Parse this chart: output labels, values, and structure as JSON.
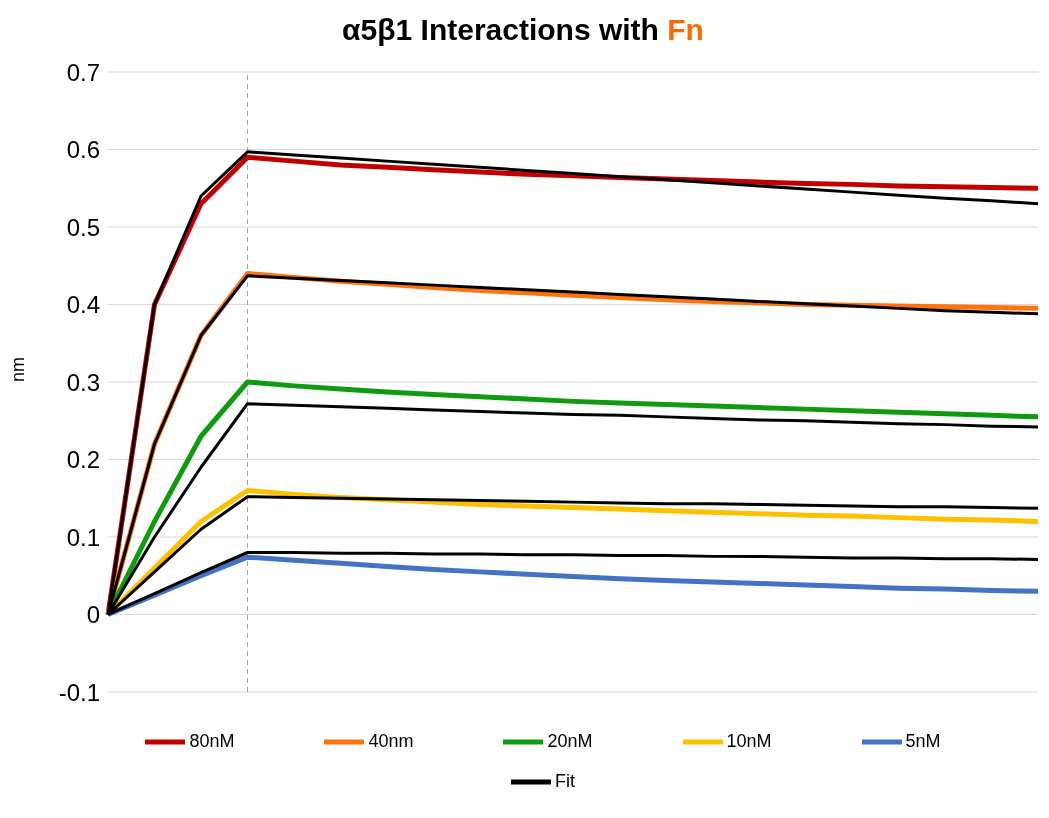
{
  "chart_data": {
    "type": "line",
    "title": "α5β1 Interactions with Fn",
    "ylabel": "nm",
    "categories": [
      null,
      null,
      null,
      null,
      null,
      null,
      null,
      null,
      null,
      null,
      null,
      null,
      null,
      null,
      null,
      null,
      null,
      null,
      null,
      null,
      null
    ],
    "ylim": [
      -0.1,
      0.7
    ],
    "yticks": [
      -0.1,
      0,
      0.1,
      0.2,
      0.3,
      0.4,
      0.5,
      0.6,
      0.7
    ],
    "grid": "y",
    "legend": "bottom",
    "tick_labels": "y",
    "marker": "none",
    "line_style": "solid",
    "series": [
      {
        "name": "80nM",
        "color": "#c00000",
        "values": [
          0,
          0.4,
          0.53,
          0.59,
          0.585,
          0.58,
          0.577,
          0.574,
          0.571,
          0.568,
          0.566,
          0.564,
          0.562,
          0.56,
          0.558,
          0.556,
          0.555,
          0.553,
          0.552,
          0.551,
          0.55
        ]
      },
      {
        "name": "40nm",
        "color": "#ff7410",
        "values": [
          0,
          0.22,
          0.36,
          0.44,
          0.435,
          0.43,
          0.426,
          0.422,
          0.418,
          0.415,
          0.412,
          0.409,
          0.406,
          0.404,
          0.402,
          0.4,
          0.399,
          0.398,
          0.397,
          0.396,
          0.395
        ]
      },
      {
        "name": "20nM",
        "color": "#109a10",
        "values": [
          0,
          0.12,
          0.23,
          0.3,
          0.295,
          0.291,
          0.287,
          0.284,
          0.281,
          0.278,
          0.275,
          0.273,
          0.271,
          0.269,
          0.267,
          0.265,
          0.263,
          0.261,
          0.259,
          0.257,
          0.255
        ]
      },
      {
        "name": "10nM",
        "color": "#ffc000",
        "values": [
          0,
          0.06,
          0.12,
          0.16,
          0.155,
          0.151,
          0.148,
          0.145,
          0.142,
          0.14,
          0.138,
          0.136,
          0.134,
          0.132,
          0.13,
          0.128,
          0.127,
          0.125,
          0.123,
          0.122,
          0.12
        ]
      },
      {
        "name": "5nM",
        "color": "#4472c4",
        "values": [
          0,
          0.025,
          0.05,
          0.074,
          0.07,
          0.066,
          0.062,
          0.058,
          0.055,
          0.052,
          0.049,
          0.046,
          0.044,
          0.042,
          0.04,
          0.038,
          0.036,
          0.034,
          0.033,
          0.031,
          0.03
        ]
      },
      {
        "name": "Fit",
        "color": "#000000",
        "values": [
          0,
          0.4,
          0.54,
          0.597,
          0.593,
          0.589,
          0.585,
          0.581,
          0.577,
          0.573,
          0.569,
          0.565,
          0.561,
          0.557,
          0.553,
          0.549,
          0.545,
          0.541,
          0.537,
          0.534,
          0.53
        ]
      },
      {
        "color": "#000000",
        "values": [
          0,
          0.22,
          0.36,
          0.437,
          0.434,
          0.431,
          0.428,
          0.425,
          0.422,
          0.419,
          0.416,
          0.413,
          0.41,
          0.407,
          0.404,
          0.401,
          0.398,
          0.395,
          0.392,
          0.39,
          0.388
        ]
      },
      {
        "color": "#000000",
        "values": [
          0,
          0.1,
          0.19,
          0.272,
          0.27,
          0.268,
          0.266,
          0.264,
          0.262,
          0.26,
          0.258,
          0.257,
          0.255,
          0.253,
          0.251,
          0.25,
          0.248,
          0.246,
          0.245,
          0.243,
          0.242
        ]
      },
      {
        "color": "#000000",
        "values": [
          0,
          0.055,
          0.11,
          0.152,
          0.151,
          0.15,
          0.149,
          0.148,
          0.147,
          0.146,
          0.145,
          0.144,
          0.143,
          0.143,
          0.142,
          0.141,
          0.14,
          0.139,
          0.139,
          0.138,
          0.137
        ]
      },
      {
        "color": "#000000",
        "values": [
          0,
          0.027,
          0.054,
          0.08,
          0.08,
          0.079,
          0.079,
          0.078,
          0.078,
          0.077,
          0.077,
          0.076,
          0.076,
          0.075,
          0.075,
          0.074,
          0.073,
          0.073,
          0.072,
          0.072,
          0.071
        ]
      }
    ]
  }
}
